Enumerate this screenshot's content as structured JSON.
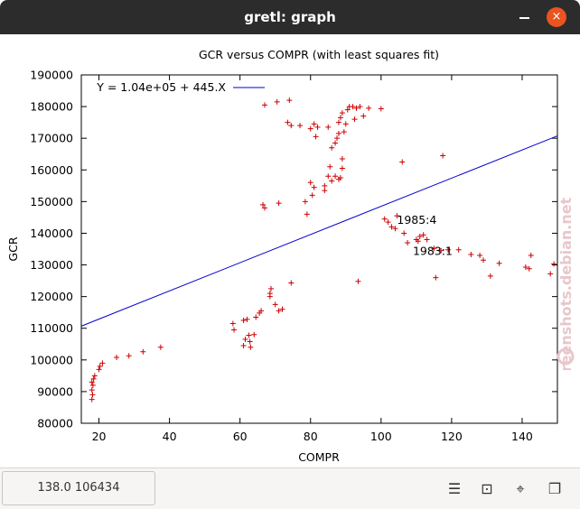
{
  "window": {
    "title": "gretl: graph",
    "close_glyph": "×"
  },
  "status": {
    "coords": "138.0 106434"
  },
  "toolbar": [
    {
      "name": "menu-icon",
      "glyph": "☰"
    },
    {
      "name": "zoom-icon",
      "glyph": "⊡"
    },
    {
      "name": "crosshair-icon",
      "glyph": "⌖"
    },
    {
      "name": "windows-icon",
      "glyph": "❐"
    }
  ],
  "watermark": "screenshots.debian.net",
  "chart_data": {
    "type": "scatter",
    "title": "GCR versus COMPR (with least squares fit)",
    "xlabel": "COMPR",
    "ylabel": "GCR",
    "xlim": [
      15,
      150
    ],
    "ylim": [
      80000,
      190000
    ],
    "xticks": [
      "20",
      "40",
      "60",
      "80",
      "100",
      "120",
      "140"
    ],
    "yticks": [
      "80000",
      "90000",
      "100000",
      "110000",
      "120000",
      "130000",
      "140000",
      "150000",
      "160000",
      "170000",
      "180000",
      "190000"
    ],
    "grid": false,
    "legend": {
      "position": "top-left",
      "label": "Y = 1.04e+05 + 445.X"
    },
    "colors": {
      "points": "#cc0000",
      "fit": "#0000cc"
    },
    "fit_line": {
      "intercept": 104000,
      "slope": 445
    },
    "annotations": [
      {
        "text": "1985:4",
        "x": 104.5,
        "y": 143000
      },
      {
        "text": "1983:1",
        "x": 109,
        "y": 133200
      }
    ],
    "points": [
      [
        18.0,
        87500
      ],
      [
        18.2,
        89000
      ],
      [
        18.0,
        90500
      ],
      [
        18.3,
        92000
      ],
      [
        18.0,
        93000
      ],
      [
        18.5,
        94000
      ],
      [
        18.8,
        95000
      ],
      [
        20.0,
        97000
      ],
      [
        20.3,
        98000
      ],
      [
        21.0,
        99000
      ],
      [
        25.0,
        100800
      ],
      [
        28.5,
        101300
      ],
      [
        32.5,
        102600
      ],
      [
        37.5,
        104000
      ],
      [
        58.0,
        111500
      ],
      [
        58.3,
        109500
      ],
      [
        61.0,
        112500
      ],
      [
        62.0,
        112800
      ],
      [
        61.5,
        106500
      ],
      [
        61.0,
        104500
      ],
      [
        62.5,
        107800
      ],
      [
        62.8,
        105800
      ],
      [
        63.0,
        104000
      ],
      [
        64.0,
        108000
      ],
      [
        64.5,
        113500
      ],
      [
        65.5,
        114800
      ],
      [
        66.0,
        115500
      ],
      [
        68.5,
        120000
      ],
      [
        68.5,
        121000
      ],
      [
        68.8,
        122500
      ],
      [
        70.0,
        117500
      ],
      [
        71.0,
        115500
      ],
      [
        72.0,
        116000
      ],
      [
        74.5,
        124300
      ],
      [
        93.5,
        124800
      ],
      [
        66.5,
        149000
      ],
      [
        67.0,
        148000
      ],
      [
        71.0,
        149500
      ],
      [
        78.5,
        150000
      ],
      [
        79.0,
        146000
      ],
      [
        80.0,
        156000
      ],
      [
        80.5,
        152000
      ],
      [
        81.0,
        154500
      ],
      [
        84.0,
        153500
      ],
      [
        84.0,
        155000
      ],
      [
        85.0,
        158000
      ],
      [
        85.5,
        161000
      ],
      [
        86.0,
        156500
      ],
      [
        87.0,
        158000
      ],
      [
        88.0,
        157000
      ],
      [
        88.5,
        157500
      ],
      [
        89.0,
        160500
      ],
      [
        89.0,
        163500
      ],
      [
        86.0,
        167000
      ],
      [
        87.0,
        168500
      ],
      [
        87.5,
        170000
      ],
      [
        88.0,
        171500
      ],
      [
        88.0,
        175000
      ],
      [
        88.5,
        176500
      ],
      [
        89.0,
        178000
      ],
      [
        89.5,
        172000
      ],
      [
        90.0,
        174500
      ],
      [
        90.5,
        179000
      ],
      [
        91.0,
        180000
      ],
      [
        92.0,
        180000
      ],
      [
        92.5,
        176000
      ],
      [
        93.0,
        179500
      ],
      [
        94.0,
        180000
      ],
      [
        95.0,
        177000
      ],
      [
        96.5,
        179500
      ],
      [
        100.0,
        179300
      ],
      [
        80.0,
        173000
      ],
      [
        81.0,
        174500
      ],
      [
        81.5,
        170500
      ],
      [
        82.0,
        173500
      ],
      [
        85.0,
        173500
      ],
      [
        77.0,
        174000
      ],
      [
        73.5,
        175000
      ],
      [
        74.5,
        174000
      ],
      [
        74.0,
        182000
      ],
      [
        70.5,
        181500
      ],
      [
        67.0,
        180500
      ],
      [
        101.0,
        144500
      ],
      [
        102.0,
        143500
      ],
      [
        103.0,
        142000
      ],
      [
        104.0,
        141500
      ],
      [
        104.5,
        145500
      ],
      [
        106.5,
        140000
      ],
      [
        107.5,
        137000
      ],
      [
        110.0,
        138000
      ],
      [
        110.5,
        137500
      ],
      [
        111.0,
        139000
      ],
      [
        112.0,
        139500
      ],
      [
        113.0,
        138000
      ],
      [
        115.0,
        135200
      ],
      [
        117.0,
        134500
      ],
      [
        119.0,
        134800
      ],
      [
        122.0,
        134800
      ],
      [
        125.5,
        133300
      ],
      [
        128.0,
        133000
      ],
      [
        129.0,
        131500
      ],
      [
        131.0,
        126500
      ],
      [
        133.5,
        130500
      ],
      [
        141.0,
        129300
      ],
      [
        142.0,
        128800
      ],
      [
        142.5,
        133000
      ],
      [
        148.0,
        127200
      ],
      [
        149.0,
        130300
      ],
      [
        115.5,
        126000
      ],
      [
        106.0,
        162500
      ],
      [
        117.5,
        164500
      ]
    ]
  }
}
